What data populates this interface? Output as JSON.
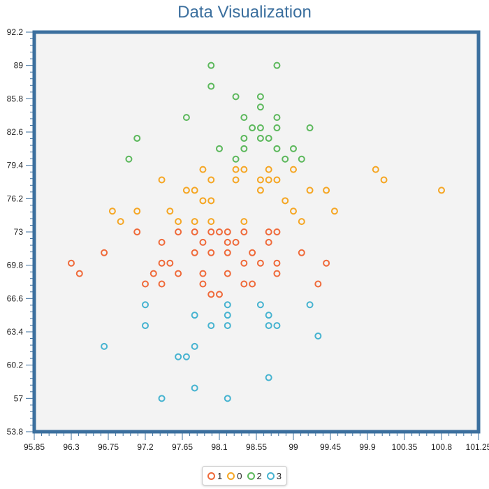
{
  "chart_data": {
    "type": "scatter",
    "title": "Data Visualization",
    "xlim": [
      95.85,
      101.25
    ],
    "ylim": [
      53.8,
      92.2
    ],
    "x_ticks": [
      "95.85",
      "96.3",
      "96.75",
      "97.2",
      "97.65",
      "98.1",
      "98.55",
      "99",
      "99.45",
      "99.9",
      "100.35",
      "100.8",
      "101.25"
    ],
    "y_ticks": [
      "92.2",
      "89",
      "85.8",
      "82.6",
      "79.4",
      "76.2",
      "73",
      "69.8",
      "66.6",
      "63.4",
      "60.2",
      "57",
      "53.8"
    ],
    "grid": false,
    "legend_position": "bottom-center",
    "series": [
      {
        "name": "1",
        "color": "#ef6a3a",
        "points": [
          [
            96.3,
            70
          ],
          [
            96.4,
            69
          ],
          [
            96.7,
            71
          ],
          [
            97.1,
            73
          ],
          [
            97.2,
            68
          ],
          [
            97.3,
            69
          ],
          [
            97.4,
            72
          ],
          [
            97.4,
            70
          ],
          [
            97.4,
            68
          ],
          [
            97.5,
            70
          ],
          [
            97.6,
            73
          ],
          [
            97.6,
            69
          ],
          [
            97.8,
            73
          ],
          [
            97.8,
            71
          ],
          [
            97.9,
            72
          ],
          [
            97.9,
            69
          ],
          [
            97.9,
            68
          ],
          [
            98.0,
            73
          ],
          [
            98.0,
            71
          ],
          [
            98.0,
            67
          ],
          [
            98.1,
            73
          ],
          [
            98.1,
            67
          ],
          [
            98.2,
            73
          ],
          [
            98.2,
            72
          ],
          [
            98.2,
            71
          ],
          [
            98.2,
            69
          ],
          [
            98.3,
            72
          ],
          [
            98.4,
            73
          ],
          [
            98.4,
            70
          ],
          [
            98.4,
            68
          ],
          [
            98.5,
            71
          ],
          [
            98.5,
            68
          ],
          [
            98.6,
            70
          ],
          [
            98.7,
            73
          ],
          [
            98.7,
            72
          ],
          [
            98.8,
            73
          ],
          [
            98.8,
            70
          ],
          [
            98.8,
            69
          ],
          [
            99.1,
            71
          ],
          [
            99.3,
            68
          ],
          [
            99.4,
            70
          ]
        ]
      },
      {
        "name": "0",
        "color": "#f5a623",
        "points": [
          [
            96.8,
            75
          ],
          [
            96.9,
            74
          ],
          [
            97.1,
            75
          ],
          [
            97.4,
            78
          ],
          [
            97.5,
            75
          ],
          [
            97.6,
            74
          ],
          [
            97.7,
            77
          ],
          [
            97.8,
            77
          ],
          [
            97.8,
            74
          ],
          [
            97.9,
            79
          ],
          [
            97.9,
            76
          ],
          [
            98.0,
            78
          ],
          [
            98.0,
            76
          ],
          [
            98.0,
            74
          ],
          [
            98.3,
            79
          ],
          [
            98.3,
            78
          ],
          [
            98.4,
            79
          ],
          [
            98.4,
            74
          ],
          [
            98.6,
            78
          ],
          [
            98.6,
            77
          ],
          [
            98.7,
            79
          ],
          [
            98.7,
            78
          ],
          [
            98.8,
            78
          ],
          [
            98.9,
            76
          ],
          [
            99.0,
            79
          ],
          [
            99.0,
            75
          ],
          [
            99.1,
            74
          ],
          [
            99.2,
            77
          ],
          [
            99.4,
            77
          ],
          [
            99.5,
            75
          ],
          [
            100.0,
            79
          ],
          [
            100.1,
            78
          ],
          [
            100.8,
            77
          ]
        ]
      },
      {
        "name": "2",
        "color": "#5cb85c",
        "points": [
          [
            97.0,
            80
          ],
          [
            97.1,
            82
          ],
          [
            97.7,
            84
          ],
          [
            98.0,
            89
          ],
          [
            98.0,
            87
          ],
          [
            98.1,
            81
          ],
          [
            98.3,
            86
          ],
          [
            98.3,
            80
          ],
          [
            98.4,
            84
          ],
          [
            98.4,
            82
          ],
          [
            98.4,
            81
          ],
          [
            98.5,
            83
          ],
          [
            98.6,
            86
          ],
          [
            98.6,
            85
          ],
          [
            98.6,
            83
          ],
          [
            98.6,
            82
          ],
          [
            98.7,
            82
          ],
          [
            98.8,
            89
          ],
          [
            98.8,
            84
          ],
          [
            98.8,
            83
          ],
          [
            98.8,
            81
          ],
          [
            98.9,
            80
          ],
          [
            99.0,
            81
          ],
          [
            99.1,
            80
          ],
          [
            99.2,
            83
          ]
        ]
      },
      {
        "name": "3",
        "color": "#46b3d0",
        "points": [
          [
            96.7,
            62
          ],
          [
            97.2,
            66
          ],
          [
            97.2,
            64
          ],
          [
            97.4,
            57
          ],
          [
            97.6,
            61
          ],
          [
            97.7,
            61
          ],
          [
            97.8,
            65
          ],
          [
            97.8,
            62
          ],
          [
            97.8,
            58
          ],
          [
            98.0,
            64
          ],
          [
            98.2,
            66
          ],
          [
            98.2,
            65
          ],
          [
            98.2,
            64
          ],
          [
            98.2,
            57
          ],
          [
            98.6,
            66
          ],
          [
            98.7,
            65
          ],
          [
            98.7,
            64
          ],
          [
            98.7,
            59
          ],
          [
            98.8,
            64
          ],
          [
            99.2,
            66
          ],
          [
            99.3,
            63
          ]
        ]
      }
    ]
  }
}
